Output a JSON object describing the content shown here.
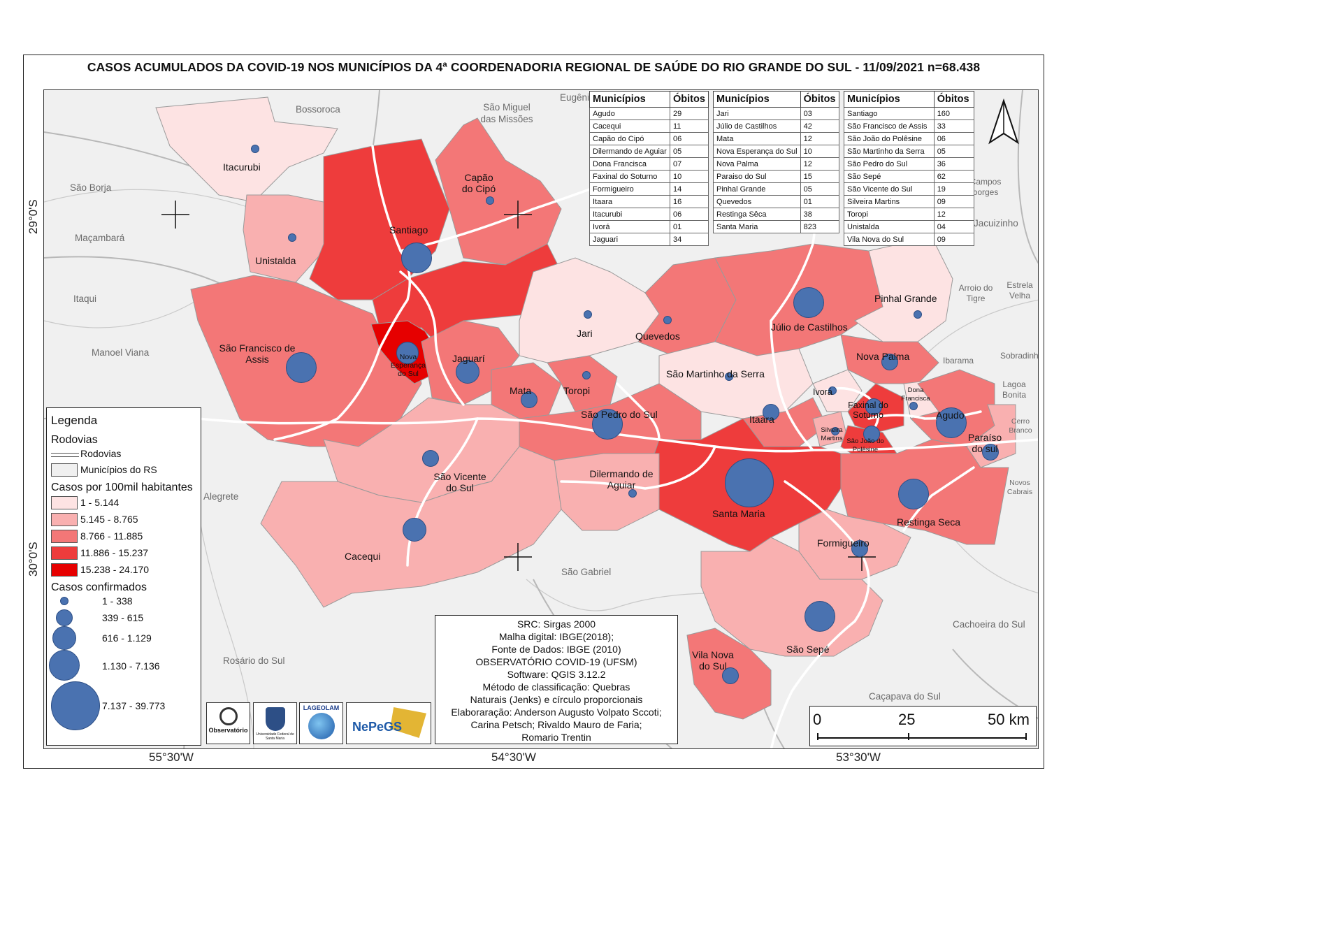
{
  "title": "CASOS ACUMULADOS DA COVID-19 NOS MUNICÍPIOS DA 4ª COORDENADORIA REGIONAL DE SAÚDE DO RIO GRANDE DO SUL - 11/09/2021 n=68.438",
  "coords": {
    "lat1": "29°0'S",
    "lat2": "30°0'S",
    "lon1": "55°30'W",
    "lon2": "54°30'W",
    "lon3": "53°30'W"
  },
  "colors": {
    "class1": "#fde3e3",
    "class2": "#f9b0b0",
    "class3": "#f37777",
    "class4": "#ee3c3c",
    "class5": "#e60000",
    "bubble": "#4a72b0",
    "background": "#f0f0f0"
  },
  "municipalities": [
    {
      "name": "Itacurubi"
    },
    {
      "name": "Unistalda"
    },
    {
      "name": "Santiago"
    },
    {
      "name": "Capão do Cipó"
    },
    {
      "name": "São Francisco de Assis"
    },
    {
      "name": "Nova Esperança do Sul"
    },
    {
      "name": "Jaguarí"
    },
    {
      "name": "Jari"
    },
    {
      "name": "Quevedos"
    },
    {
      "name": "Júlio de Castilhos"
    },
    {
      "name": "Pinhal Grande"
    },
    {
      "name": "Mata"
    },
    {
      "name": "Toropi"
    },
    {
      "name": "São Pedro do Sul"
    },
    {
      "name": "São Martinho da Serra"
    },
    {
      "name": "Nova Palma"
    },
    {
      "name": "Ivorá"
    },
    {
      "name": "Faxinal do Soturno"
    },
    {
      "name": "Dona Francisca"
    },
    {
      "name": "Agudo"
    },
    {
      "name": "Itaara"
    },
    {
      "name": "Silveira Martins"
    },
    {
      "name": "São João do Polêsine"
    },
    {
      "name": "Paraíso do sul"
    },
    {
      "name": "São Vicente do Sul"
    },
    {
      "name": "Dilermando de Aguiar"
    },
    {
      "name": "Santa Maria"
    },
    {
      "name": "Restinga Seca"
    },
    {
      "name": "Cacequi"
    },
    {
      "name": "Formigueiro"
    },
    {
      "name": "São Sepé"
    },
    {
      "name": "Vila Nova do Sul"
    }
  ],
  "neighbors": [
    "Bossoroca",
    "São Miguel das Missões",
    "Eugênio",
    "São Borja",
    "Maçambará",
    "Itaqui",
    "Manoel Viana",
    "Alegrete",
    "São Gabriel",
    "Rosário do Sul",
    "Cachoeira do Sul",
    "Caçapava do Sul",
    "Campos borges",
    "Jacuizinho",
    "Arroio do Tigre",
    "Estrela Velha",
    "Ibarama",
    "Sobradinho",
    "Lagoa Bonita",
    "Cerro Branco",
    "Novos Cabrais"
  ],
  "tables": {
    "header_muni": "Municípios",
    "header_obitos": "Óbitos",
    "table1": [
      [
        "Agudo",
        "29"
      ],
      [
        "Cacequi",
        "11"
      ],
      [
        "Capão do Cipó",
        "06"
      ],
      [
        "Dilermando de Aguiar",
        "05"
      ],
      [
        "Dona Francisca",
        "07"
      ],
      [
        "Faxinal do Soturno",
        "10"
      ],
      [
        "Formigueiro",
        "14"
      ],
      [
        "Itaara",
        "16"
      ],
      [
        "Itacurubi",
        "06"
      ],
      [
        "Ivorá",
        "01"
      ],
      [
        "Jaguari",
        "34"
      ]
    ],
    "table2": [
      [
        "Jari",
        "03"
      ],
      [
        "Júlio de Castilhos",
        "42"
      ],
      [
        "Mata",
        "12"
      ],
      [
        "Nova Esperança do Sul",
        "10"
      ],
      [
        "Nova Palma",
        "12"
      ],
      [
        "Paraiso do Sul",
        "15"
      ],
      [
        "Pinhal Grande",
        "05"
      ],
      [
        "Quevedos",
        "01"
      ],
      [
        "Restinga Sêca",
        "38"
      ],
      [
        "Santa Maria",
        "823"
      ]
    ],
    "table3": [
      [
        "Santiago",
        "160"
      ],
      [
        "São Francisco de Assis",
        "33"
      ],
      [
        "São João do Polêsine",
        "06"
      ],
      [
        "São Martinho da Serra",
        "05"
      ],
      [
        "São Pedro do Sul",
        "36"
      ],
      [
        "São Sepé",
        "62"
      ],
      [
        "São Vicente do Sul",
        "19"
      ],
      [
        "Silveira Martins",
        "09"
      ],
      [
        "Toropi",
        "12"
      ],
      [
        "Unistalda",
        "04"
      ],
      [
        "Vila Nova do Sul",
        "09"
      ]
    ]
  },
  "legend": {
    "title": "Legenda",
    "roads_section": "Rodovias",
    "roads_item": "Rodovias",
    "munis_item": "Municípios do RS",
    "rate_title": "Casos por 100mil habitantes",
    "rate_classes": [
      "1 - 5.144",
      "5.145 - 8.765",
      "8.766 - 11.885",
      "11.886 - 15.237",
      "15.238 - 24.170"
    ],
    "cases_title": "Casos confirmados",
    "case_classes": [
      "1 - 338",
      "339 - 615",
      "616 - 1.129",
      "1.130 - 7.136",
      "7.137 - 39.773"
    ]
  },
  "info": [
    "SRC: Sirgas 2000",
    "Malha digital: IBGE(2018);",
    "Fonte de Dados: IBGE (2010)",
    "OBSERVATÓRIO COVID-19 (UFSM)",
    "Software: QGIS 3.12.2",
    "Método de classificação: Quebras",
    "Naturais (Jenks) e círculo proporcionais",
    "Elaboraração: Anderson Augusto Volpato Sccoti;",
    "Carina Petsch; Rivaldo Mauro de Faria;",
    "Romario Trentin"
  ],
  "scale": {
    "s0": "0",
    "s1": "25",
    "s2": "50 km"
  },
  "logos": {
    "l1": "Observatório",
    "l2": "Universidade Federal de Santa Maria",
    "l3": "LAGEOLAM",
    "l4": "NePeGS"
  }
}
